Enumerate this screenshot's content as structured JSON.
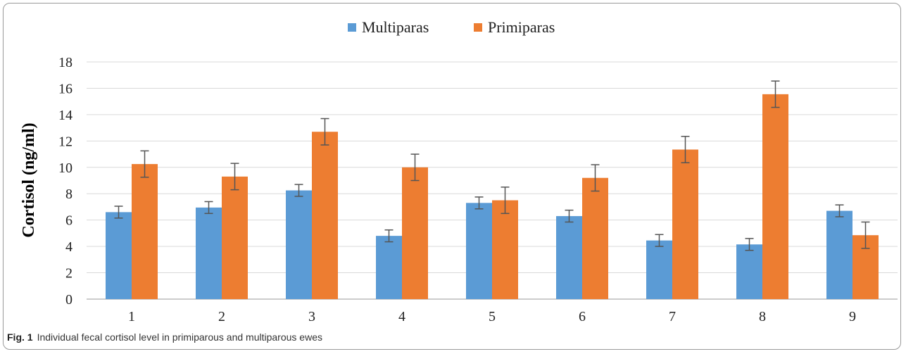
{
  "figure": {
    "caption_label": "Fig. 1",
    "caption_text": "Individual fecal cortisol level in primiparous and multiparous ewes"
  },
  "chart_data": {
    "type": "bar",
    "ylabel": "Cortisol (ng/ml)",
    "xlabel": "",
    "categories": [
      "1",
      "2",
      "3",
      "4",
      "5",
      "6",
      "7",
      "8",
      "9"
    ],
    "ylim": [
      0,
      18
    ],
    "yticks": [
      0,
      2,
      4,
      6,
      8,
      10,
      12,
      14,
      16,
      18
    ],
    "grid": true,
    "legend_position": "top-center",
    "series": [
      {
        "name": "Multiparas",
        "color": "#5b9bd5",
        "values": [
          6.6,
          6.95,
          8.25,
          4.8,
          7.3,
          6.3,
          4.45,
          4.15,
          6.7
        ],
        "errors": [
          0.45,
          0.45,
          0.45,
          0.45,
          0.45,
          0.45,
          0.45,
          0.45,
          0.45
        ]
      },
      {
        "name": "Primiparas",
        "color": "#ed7d31",
        "values": [
          10.25,
          9.3,
          12.7,
          10.0,
          7.5,
          9.2,
          11.35,
          15.55,
          4.85
        ],
        "errors": [
          1.0,
          1.0,
          1.0,
          1.0,
          1.0,
          1.0,
          1.0,
          1.0,
          1.0
        ]
      }
    ]
  }
}
